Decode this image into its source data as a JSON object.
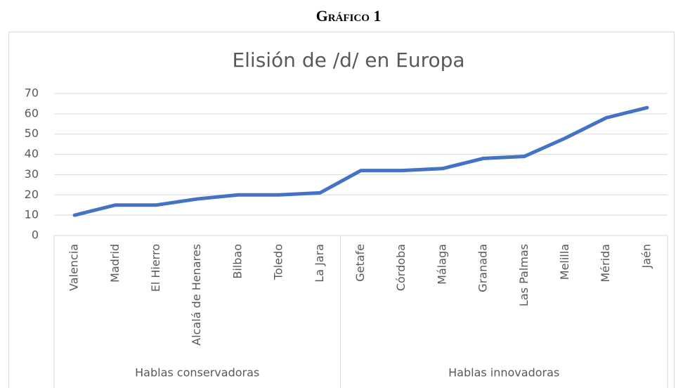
{
  "header": "Gráfico 1",
  "chart_data": {
    "type": "line",
    "title": "Elisión de /d/ en Europa",
    "category_groups": [
      {
        "name": "Hablas conservadoras",
        "categories": [
          "Valencia",
          "Madrid",
          "El Hierro",
          "Alcalá de Henares",
          "Bilbao",
          "Toledo",
          "La Jara"
        ]
      },
      {
        "name": "Hablas innovadoras",
        "categories": [
          "Getafe",
          "Córdoba",
          "Málaga",
          "Granada",
          "Las Palmas",
          "Melilla",
          "Mérida",
          "Jaén"
        ]
      }
    ],
    "values": [
      10,
      15,
      15,
      18,
      20,
      20,
      21,
      32,
      32,
      33,
      38,
      39,
      48,
      58,
      63
    ],
    "color": "#4472c4",
    "ylim": [
      0,
      70
    ],
    "yticks": [
      0,
      10,
      20,
      30,
      40,
      50,
      60,
      70
    ],
    "grid": true
  }
}
